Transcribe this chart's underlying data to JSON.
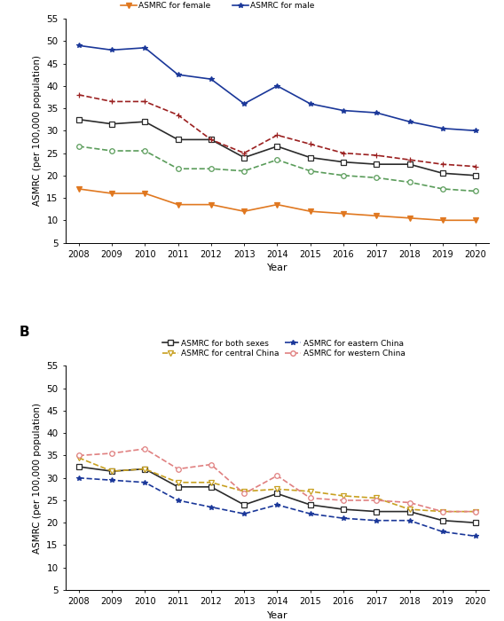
{
  "years": [
    2008,
    2009,
    2010,
    2011,
    2012,
    2013,
    2014,
    2015,
    2016,
    2017,
    2018,
    2019,
    2020
  ],
  "panel_A": {
    "both_sexes": [
      32.5,
      31.5,
      32.0,
      28.0,
      28.0,
      24.0,
      26.5,
      24.0,
      23.0,
      22.5,
      22.5,
      20.5,
      20.0
    ],
    "male": [
      49.0,
      48.0,
      48.5,
      42.5,
      41.5,
      36.0,
      40.0,
      36.0,
      34.5,
      34.0,
      32.0,
      30.5,
      30.0
    ],
    "female": [
      17.0,
      16.0,
      16.0,
      13.5,
      13.5,
      12.0,
      13.5,
      12.0,
      11.5,
      11.0,
      10.5,
      10.0,
      10.0
    ],
    "rural": [
      38.0,
      36.5,
      36.5,
      33.5,
      28.0,
      25.0,
      29.0,
      27.0,
      25.0,
      24.5,
      23.5,
      22.5,
      22.0
    ],
    "urban": [
      26.5,
      25.5,
      25.5,
      21.5,
      21.5,
      21.0,
      23.5,
      21.0,
      20.0,
      19.5,
      18.5,
      17.0,
      16.5
    ]
  },
  "panel_B": {
    "both_sexes": [
      32.5,
      31.5,
      32.0,
      28.0,
      28.0,
      24.0,
      26.5,
      24.0,
      23.0,
      22.5,
      22.5,
      20.5,
      20.0
    ],
    "eastern": [
      30.0,
      29.5,
      29.0,
      25.0,
      23.5,
      22.0,
      24.0,
      22.0,
      21.0,
      20.5,
      20.5,
      18.0,
      17.0
    ],
    "central": [
      34.5,
      31.5,
      32.0,
      29.0,
      29.0,
      27.0,
      27.5,
      27.0,
      26.0,
      25.5,
      23.0,
      22.5,
      22.5
    ],
    "western": [
      35.0,
      35.5,
      36.5,
      32.0,
      33.0,
      26.5,
      30.5,
      25.5,
      25.0,
      25.0,
      24.5,
      22.5,
      22.5
    ]
  },
  "colors": {
    "both_sexes": "#2b2b2b",
    "male": "#1a3799",
    "female": "#e07820",
    "rural": "#9b2020",
    "urban": "#5a9c5a",
    "eastern": "#1a3799",
    "central": "#c8a020",
    "western": "#e08080"
  },
  "ylim": [
    5,
    55
  ],
  "yticks": [
    5,
    10,
    15,
    20,
    25,
    30,
    35,
    40,
    45,
    50,
    55
  ],
  "ylabel": "ASMRC (per 100,000 population)",
  "xlabel": "Year"
}
